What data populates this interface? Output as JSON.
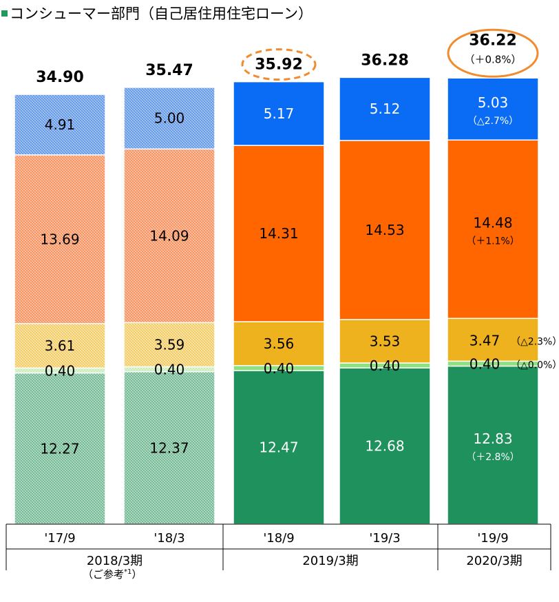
{
  "title": "コンシューマー部門（自己居住用住宅ローン）",
  "note": {
    "text": "（ご参考",
    "sup": "*1",
    "close": "）"
  },
  "colors": {
    "blue": "#0a6cf5",
    "orange": "#ff6600",
    "gold": "#eeb21f",
    "lightgreen": "#8fe07e",
    "green": "#1e915c",
    "highlight": "#f28a2e",
    "hatch_blue": "#7da7e8",
    "hatch_orange": "#f7a27c",
    "hatch_gold": "#f6d57e",
    "hatch_lightgreen": "#d5f2c6",
    "hatch_green": "#8ec7a8"
  },
  "chart_data": {
    "type": "bar",
    "stacked": true,
    "categories": [
      "'17/9",
      "'18/3",
      "'18/9",
      "'19/3",
      "'19/9"
    ],
    "groups": [
      {
        "label": "2018/3期",
        "categories": [
          0,
          1
        ]
      },
      {
        "label": "2019/3期",
        "categories": [
          2,
          3
        ]
      },
      {
        "label": "2020/3期",
        "categories": [
          4
        ]
      }
    ],
    "reference_categories": [
      0,
      1
    ],
    "series": [
      {
        "key": "green",
        "values": [
          12.27,
          12.37,
          12.47,
          12.68,
          12.83
        ],
        "changes": [
          null,
          null,
          null,
          null,
          "（＋2.8%）"
        ]
      },
      {
        "key": "lightgreen",
        "values": [
          0.4,
          0.4,
          0.4,
          0.4,
          0.4
        ],
        "changes": [
          null,
          null,
          null,
          null,
          "（△0.0%）"
        ]
      },
      {
        "key": "gold",
        "values": [
          3.61,
          3.59,
          3.56,
          3.53,
          3.47
        ],
        "changes": [
          null,
          null,
          null,
          null,
          "（△2.3%）"
        ]
      },
      {
        "key": "orange",
        "values": [
          13.69,
          14.09,
          14.31,
          14.53,
          14.48
        ],
        "changes": [
          null,
          null,
          null,
          null,
          "（＋1.1%）"
        ]
      },
      {
        "key": "blue",
        "values": [
          4.91,
          5.0,
          5.17,
          5.12,
          5.03
        ],
        "changes": [
          null,
          null,
          null,
          null,
          "（△2.7%）"
        ]
      }
    ],
    "totals": [
      34.9,
      35.47,
      35.92,
      36.28,
      36.22
    ],
    "total_change": [
      null,
      null,
      null,
      null,
      "（＋0.8%）"
    ],
    "highlighted_totals": [
      2,
      4
    ]
  }
}
